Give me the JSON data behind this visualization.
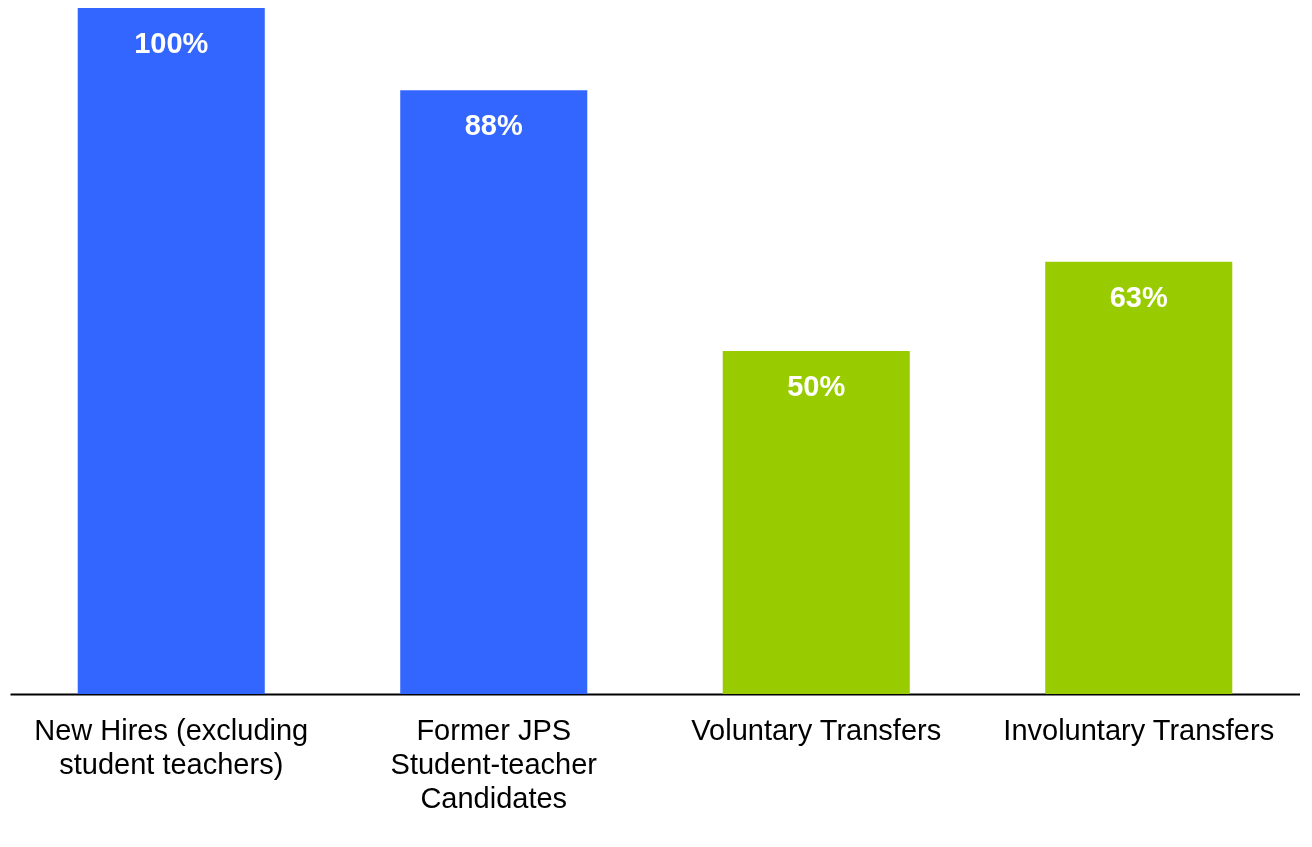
{
  "chart_data": {
    "type": "bar",
    "categories": [
      "New Hires (excluding student teachers)",
      "Former JPS Student-teacher Candidates",
      "Voluntary Transfers",
      "Involuntary Transfers"
    ],
    "values": [
      100,
      88,
      50,
      63
    ],
    "colors": [
      "#3366ff",
      "#3366ff",
      "#99cc00",
      "#99cc00"
    ],
    "data_labels": true,
    "value_labels": [
      "100%",
      "88%",
      "50%",
      "63%"
    ]
  }
}
